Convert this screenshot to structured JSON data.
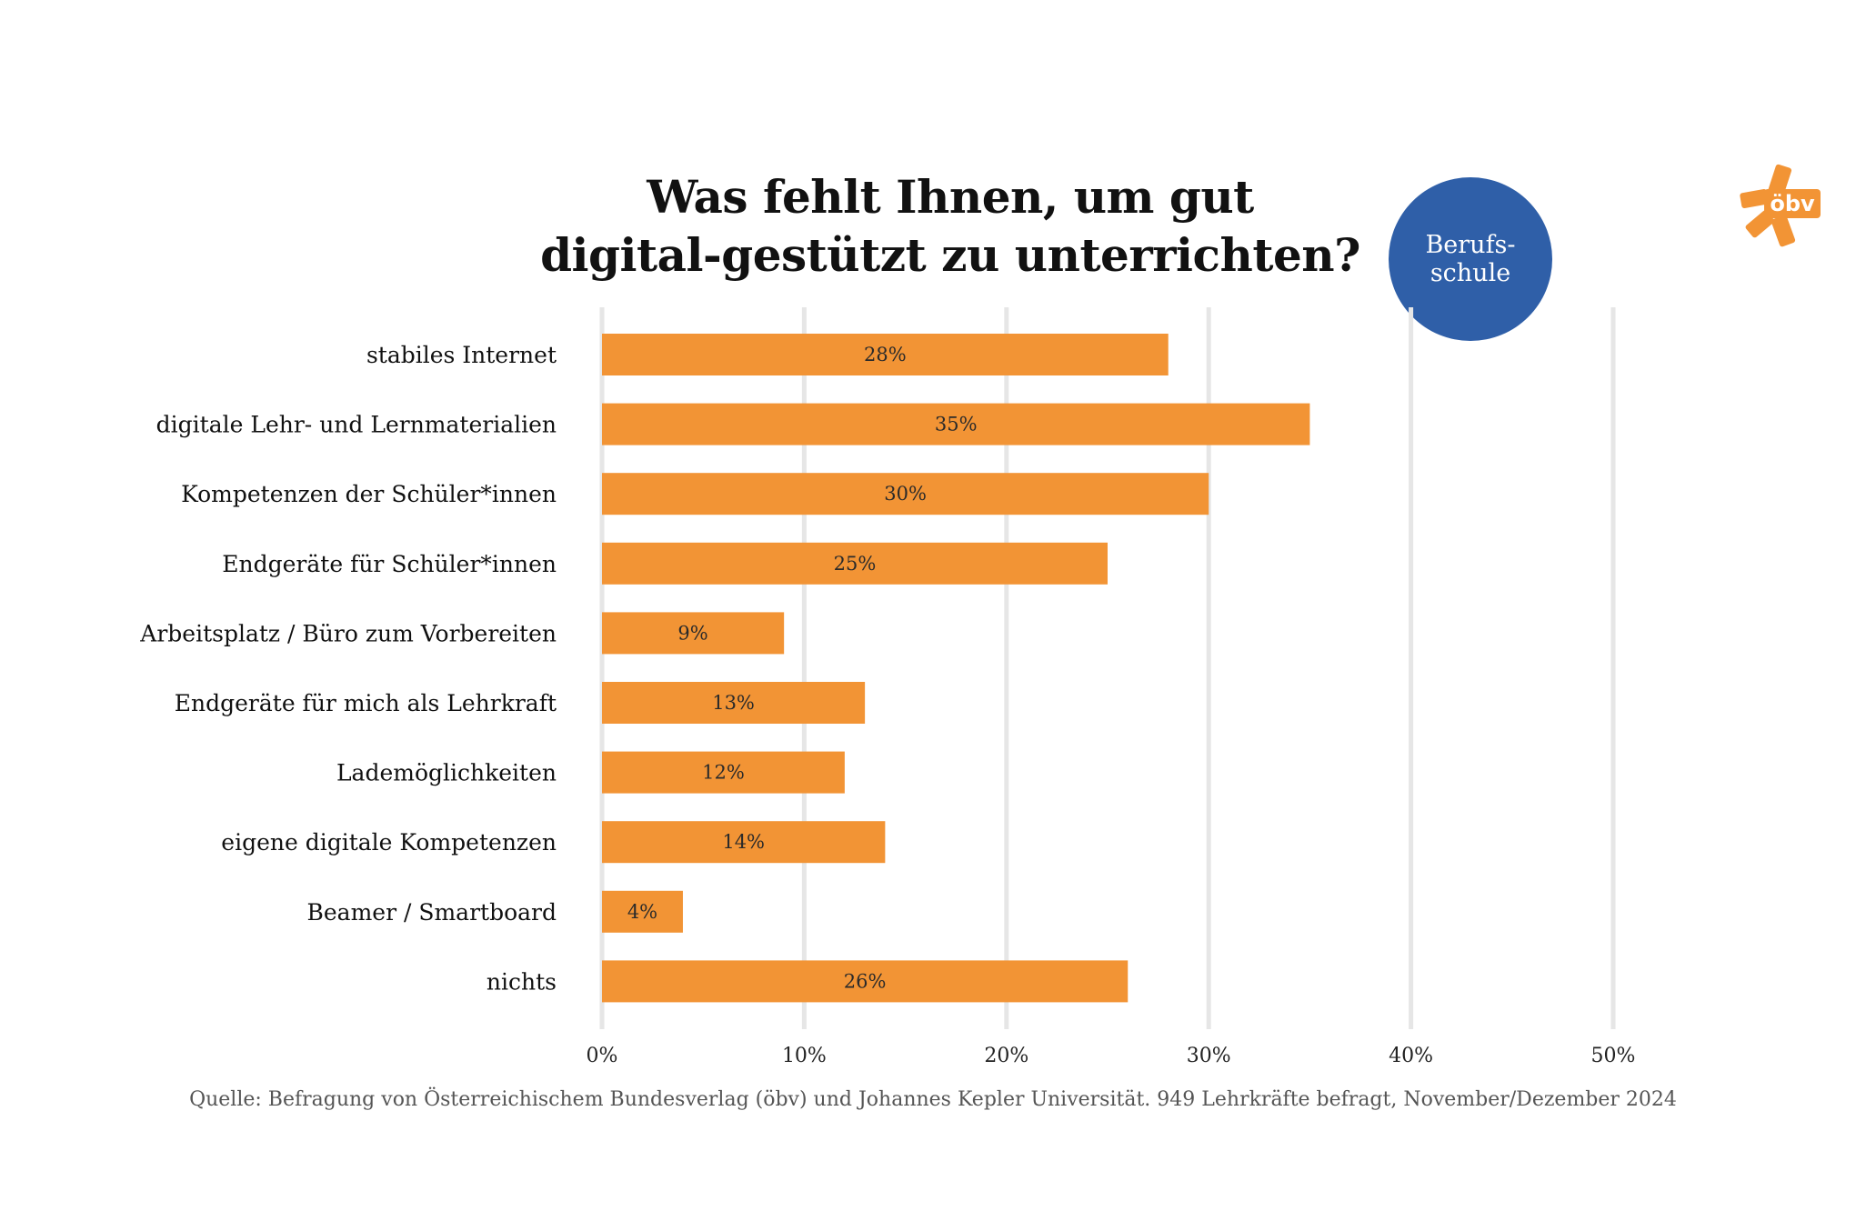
{
  "title": {
    "line1": "Was fehlt Ihnen, um gut",
    "line2": "digital-gestützt zu unterrichten?"
  },
  "badge": {
    "line1": "Berufs-",
    "line2": "schule"
  },
  "logo": {
    "text": "öbv",
    "color": "#f29435"
  },
  "source": "Quelle: Befragung von Österreichischem Bundesverlag (öbv) und Johannes Kepler Universität. 949 Lehrkräfte befragt, November/Dezember 2024",
  "colors": {
    "bar": "#f29435",
    "badge": "#2f5fa8",
    "grid": "#e6e6e6"
  },
  "chart_data": {
    "type": "bar",
    "orientation": "horizontal",
    "categories": [
      "stabiles Internet",
      "digitale Lehr- und Lernmaterialien",
      "Kompetenzen der Schüler*innen",
      "Endgeräte für Schüler*innen",
      "Arbeitsplatz / Büro zum Vorbereiten",
      "Endgeräte für mich als Lehrkraft",
      "Lademöglichkeiten",
      "eigene digitale Kompetenzen",
      "Beamer / Smartboard",
      "nichts"
    ],
    "values": [
      28,
      35,
      30,
      25,
      9,
      13,
      12,
      14,
      4,
      26
    ],
    "value_labels": [
      "28%",
      "35%",
      "30%",
      "25%",
      "9%",
      "13%",
      "12%",
      "14%",
      "4%",
      "26%"
    ],
    "xlim": [
      0,
      50
    ],
    "xticks": [
      0,
      10,
      20,
      30,
      40,
      50
    ],
    "xtick_labels": [
      "0%",
      "10%",
      "20%",
      "30%",
      "40%",
      "50%"
    ],
    "grid": true
  }
}
